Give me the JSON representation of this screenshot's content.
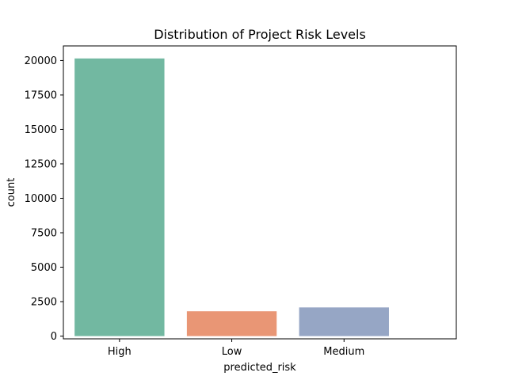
{
  "chart_data": {
    "type": "bar",
    "title": "Distribution of Project Risk Levels",
    "xlabel": "predicted_risk",
    "ylabel": "count",
    "categories": [
      "High",
      "Low",
      "Medium"
    ],
    "values": [
      20150,
      1800,
      2080
    ],
    "colors": [
      "#72b8a1",
      "#e99675",
      "#96a6c5"
    ],
    "ylim": [
      -200,
      21060
    ],
    "yticks": [
      0,
      2500,
      5000,
      7500,
      10000,
      12500,
      15000,
      17500,
      20000
    ],
    "ytick_labels": [
      "0",
      "2500",
      "5000",
      "7500",
      "10000",
      "12500",
      "15000",
      "17500",
      "20000"
    ],
    "grid": false,
    "legend": "none"
  }
}
